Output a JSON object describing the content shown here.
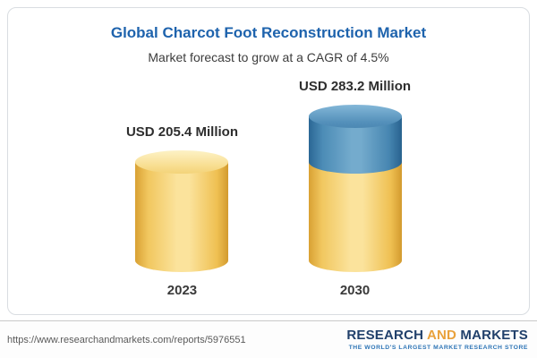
{
  "card": {
    "title": "Global Charcot Foot Reconstruction Market",
    "subtitle": "Market forecast to grow at a CAGR of 4.5%"
  },
  "chart_data": {
    "type": "bar",
    "style": "3d-cylinder",
    "title": "Global Charcot Foot Reconstruction Market",
    "subtitle": "Market forecast to grow at a CAGR of 4.5%",
    "categories": [
      "2023",
      "2030"
    ],
    "values": [
      205.4,
      283.2
    ],
    "unit": "USD Million",
    "value_labels": [
      "USD 205.4 Million",
      "USD 283.2 Million"
    ],
    "cagr": "4.5%",
    "xlabel": "",
    "ylabel": "",
    "legend": "none",
    "colors": {
      "base_segment": "#f2c65f",
      "growth_segment": "#4a86b1"
    }
  },
  "footer": {
    "url": "https://www.researchandmarkets.com/reports/5976551",
    "logo": {
      "research": "RESEARCH ",
      "and": "AND",
      "markets": " MARKETS",
      "tagline": "THE WORLD'S LARGEST MARKET RESEARCH STORE"
    }
  }
}
